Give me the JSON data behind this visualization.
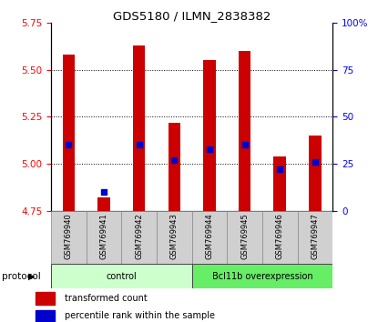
{
  "title": "GDS5180 / ILMN_2838382",
  "samples": [
    "GSM769940",
    "GSM769941",
    "GSM769942",
    "GSM769943",
    "GSM769944",
    "GSM769945",
    "GSM769946",
    "GSM769947"
  ],
  "transformed_counts": [
    5.58,
    4.82,
    5.63,
    5.22,
    5.55,
    5.6,
    5.04,
    5.15
  ],
  "percentile_ranks": [
    35,
    10,
    35,
    27,
    33,
    35,
    22,
    26
  ],
  "groups": [
    "control",
    "control",
    "control",
    "control",
    "Bcl11b overexpression",
    "Bcl11b overexpression",
    "Bcl11b overexpression",
    "Bcl11b overexpression"
  ],
  "group_colors": {
    "control": "#ccffcc",
    "Bcl11b overexpression": "#66ee66"
  },
  "ylim_left": [
    4.75,
    5.75
  ],
  "ylim_right": [
    0,
    100
  ],
  "yticks_left": [
    4.75,
    5.0,
    5.25,
    5.5,
    5.75
  ],
  "yticks_right": [
    0,
    25,
    50,
    75,
    100
  ],
  "bar_color": "#cc0000",
  "dot_color": "#0000cc",
  "bar_bottom": 4.75,
  "protocol_label": "protocol",
  "legend_items": [
    {
      "label": "transformed count",
      "color": "#cc0000"
    },
    {
      "label": "percentile rank within the sample",
      "color": "#0000cc"
    }
  ],
  "grid_lines": [
    5.0,
    5.25,
    5.5
  ],
  "label_box_color": "#d0d0d0"
}
